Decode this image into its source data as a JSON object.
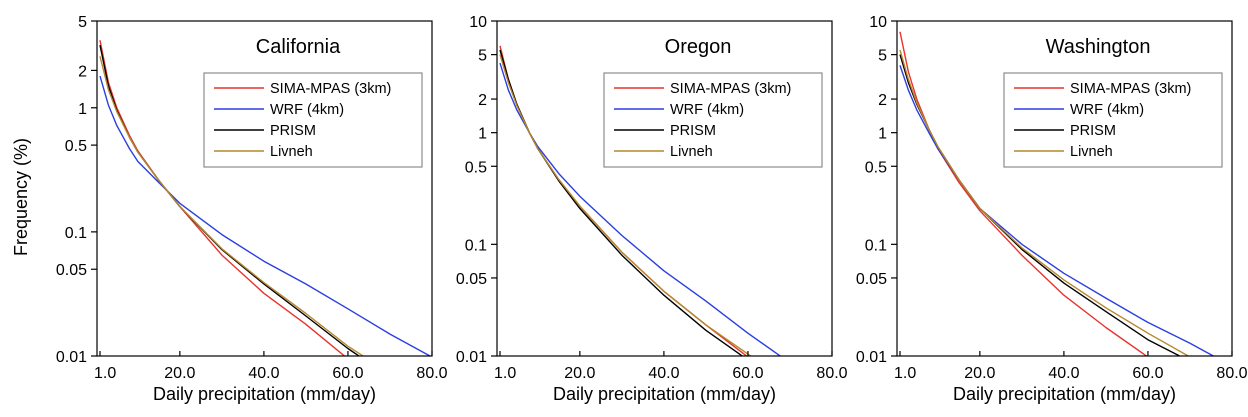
{
  "chart_data": [
    {
      "type": "line",
      "title": "California",
      "xlabel": "Daily precipitation (mm/day)",
      "ylabel": "Frequency (%)",
      "xlim": [
        1,
        80
      ],
      "ylim": [
        0.01,
        5
      ],
      "yscale": "log",
      "x_ticks": [
        "1.0",
        "20.0",
        "40.0",
        "60.0",
        "80.0"
      ],
      "y_ticks": [
        "0.01",
        "0.05",
        "0.1",
        "0.5",
        "1",
        "2",
        "5"
      ],
      "legend": "top-right",
      "series": [
        {
          "name": "SIMA-MPAS (3km)",
          "color": "#e8332e",
          "x": [
            1,
            3,
            5,
            8,
            10,
            15,
            20,
            30,
            40,
            50,
            60
          ],
          "y": [
            3.5,
            1.6,
            1.0,
            0.6,
            0.45,
            0.26,
            0.16,
            0.065,
            0.032,
            0.018,
            0.0095
          ]
        },
        {
          "name": "WRF (4km)",
          "color": "#2a3fe0",
          "x": [
            1,
            3,
            5,
            8,
            10,
            15,
            20,
            30,
            40,
            50,
            60,
            70,
            80
          ],
          "y": [
            1.8,
            1.05,
            0.72,
            0.47,
            0.37,
            0.25,
            0.17,
            0.095,
            0.058,
            0.038,
            0.024,
            0.015,
            0.0098
          ]
        },
        {
          "name": "PRISM",
          "color": "#000000",
          "x": [
            1,
            3,
            5,
            8,
            10,
            15,
            20,
            30,
            40,
            50,
            60,
            63
          ],
          "y": [
            3.2,
            1.5,
            0.95,
            0.58,
            0.44,
            0.26,
            0.16,
            0.072,
            0.038,
            0.021,
            0.0115,
            0.0098
          ]
        },
        {
          "name": "Livneh",
          "color": "#b5882e",
          "x": [
            1,
            3,
            5,
            8,
            10,
            15,
            20,
            30,
            40,
            50,
            60,
            64
          ],
          "y": [
            2.6,
            1.4,
            0.93,
            0.58,
            0.44,
            0.26,
            0.16,
            0.073,
            0.039,
            0.022,
            0.012,
            0.0098
          ]
        }
      ]
    },
    {
      "type": "line",
      "title": "Oregon",
      "xlabel": "Daily precipitation (mm/day)",
      "ylabel": "",
      "xlim": [
        1,
        80
      ],
      "ylim": [
        0.01,
        10
      ],
      "yscale": "log",
      "x_ticks": [
        "1.0",
        "20.0",
        "40.0",
        "60.0",
        "80.0"
      ],
      "y_ticks": [
        "0.01",
        "0.05",
        "0.1",
        "0.5",
        "1",
        "2",
        "5",
        "10"
      ],
      "legend": "top-right",
      "series": [
        {
          "name": "SIMA-MPAS (3km)",
          "color": "#e8332e",
          "x": [
            1,
            3,
            5,
            8,
            10,
            15,
            20,
            30,
            40,
            50,
            60
          ],
          "y": [
            6.0,
            3.0,
            1.8,
            1.0,
            0.72,
            0.38,
            0.22,
            0.085,
            0.038,
            0.019,
            0.0098
          ]
        },
        {
          "name": "WRF (4km)",
          "color": "#2a3fe0",
          "x": [
            1,
            3,
            5,
            8,
            10,
            15,
            20,
            30,
            40,
            50,
            60,
            68
          ],
          "y": [
            4.2,
            2.4,
            1.6,
            1.0,
            0.75,
            0.43,
            0.27,
            0.12,
            0.058,
            0.031,
            0.016,
            0.0098
          ]
        },
        {
          "name": "PRISM",
          "color": "#000000",
          "x": [
            1,
            3,
            5,
            8,
            10,
            15,
            20,
            30,
            40,
            50,
            59
          ],
          "y": [
            5.5,
            3.0,
            1.8,
            1.0,
            0.72,
            0.37,
            0.21,
            0.08,
            0.035,
            0.017,
            0.0098
          ]
        },
        {
          "name": "Livneh",
          "color": "#b5882e",
          "x": [
            1,
            3,
            5,
            8,
            10,
            15,
            20,
            30,
            40,
            50,
            61
          ],
          "y": [
            5.0,
            2.8,
            1.75,
            1.0,
            0.72,
            0.38,
            0.22,
            0.085,
            0.038,
            0.019,
            0.0098
          ]
        }
      ]
    },
    {
      "type": "line",
      "title": "Washington",
      "xlabel": "Daily precipitation (mm/day)",
      "ylabel": "",
      "xlim": [
        1,
        80
      ],
      "ylim": [
        0.01,
        10
      ],
      "yscale": "log",
      "x_ticks": [
        "1.0",
        "20.0",
        "40.0",
        "60.0",
        "80.0"
      ],
      "y_ticks": [
        "0.01",
        "0.05",
        "0.1",
        "0.5",
        "1",
        "2",
        "5",
        "10"
      ],
      "legend": "top-right",
      "series": [
        {
          "name": "SIMA-MPAS (3km)",
          "color": "#e8332e",
          "x": [
            1,
            3,
            5,
            8,
            10,
            15,
            20,
            30,
            40,
            50,
            60
          ],
          "y": [
            8.0,
            3.5,
            2.0,
            1.05,
            0.72,
            0.36,
            0.2,
            0.08,
            0.035,
            0.018,
            0.0098
          ]
        },
        {
          "name": "WRF (4km)",
          "color": "#2a3fe0",
          "x": [
            1,
            3,
            5,
            8,
            10,
            15,
            20,
            30,
            40,
            50,
            60,
            70,
            76
          ],
          "y": [
            4.0,
            2.4,
            1.6,
            0.98,
            0.72,
            0.38,
            0.21,
            0.1,
            0.055,
            0.033,
            0.02,
            0.013,
            0.0098
          ]
        },
        {
          "name": "PRISM",
          "color": "#000000",
          "x": [
            1,
            3,
            5,
            8,
            10,
            15,
            20,
            30,
            40,
            50,
            60,
            68
          ],
          "y": [
            5.0,
            2.8,
            1.8,
            1.05,
            0.75,
            0.38,
            0.21,
            0.09,
            0.045,
            0.025,
            0.014,
            0.0098
          ]
        },
        {
          "name": "Livneh",
          "color": "#b5882e",
          "x": [
            1,
            3,
            5,
            8,
            10,
            15,
            20,
            30,
            40,
            50,
            60,
            70
          ],
          "y": [
            5.5,
            3.0,
            1.85,
            1.05,
            0.75,
            0.38,
            0.21,
            0.093,
            0.048,
            0.027,
            0.016,
            0.0098
          ]
        }
      ]
    }
  ]
}
